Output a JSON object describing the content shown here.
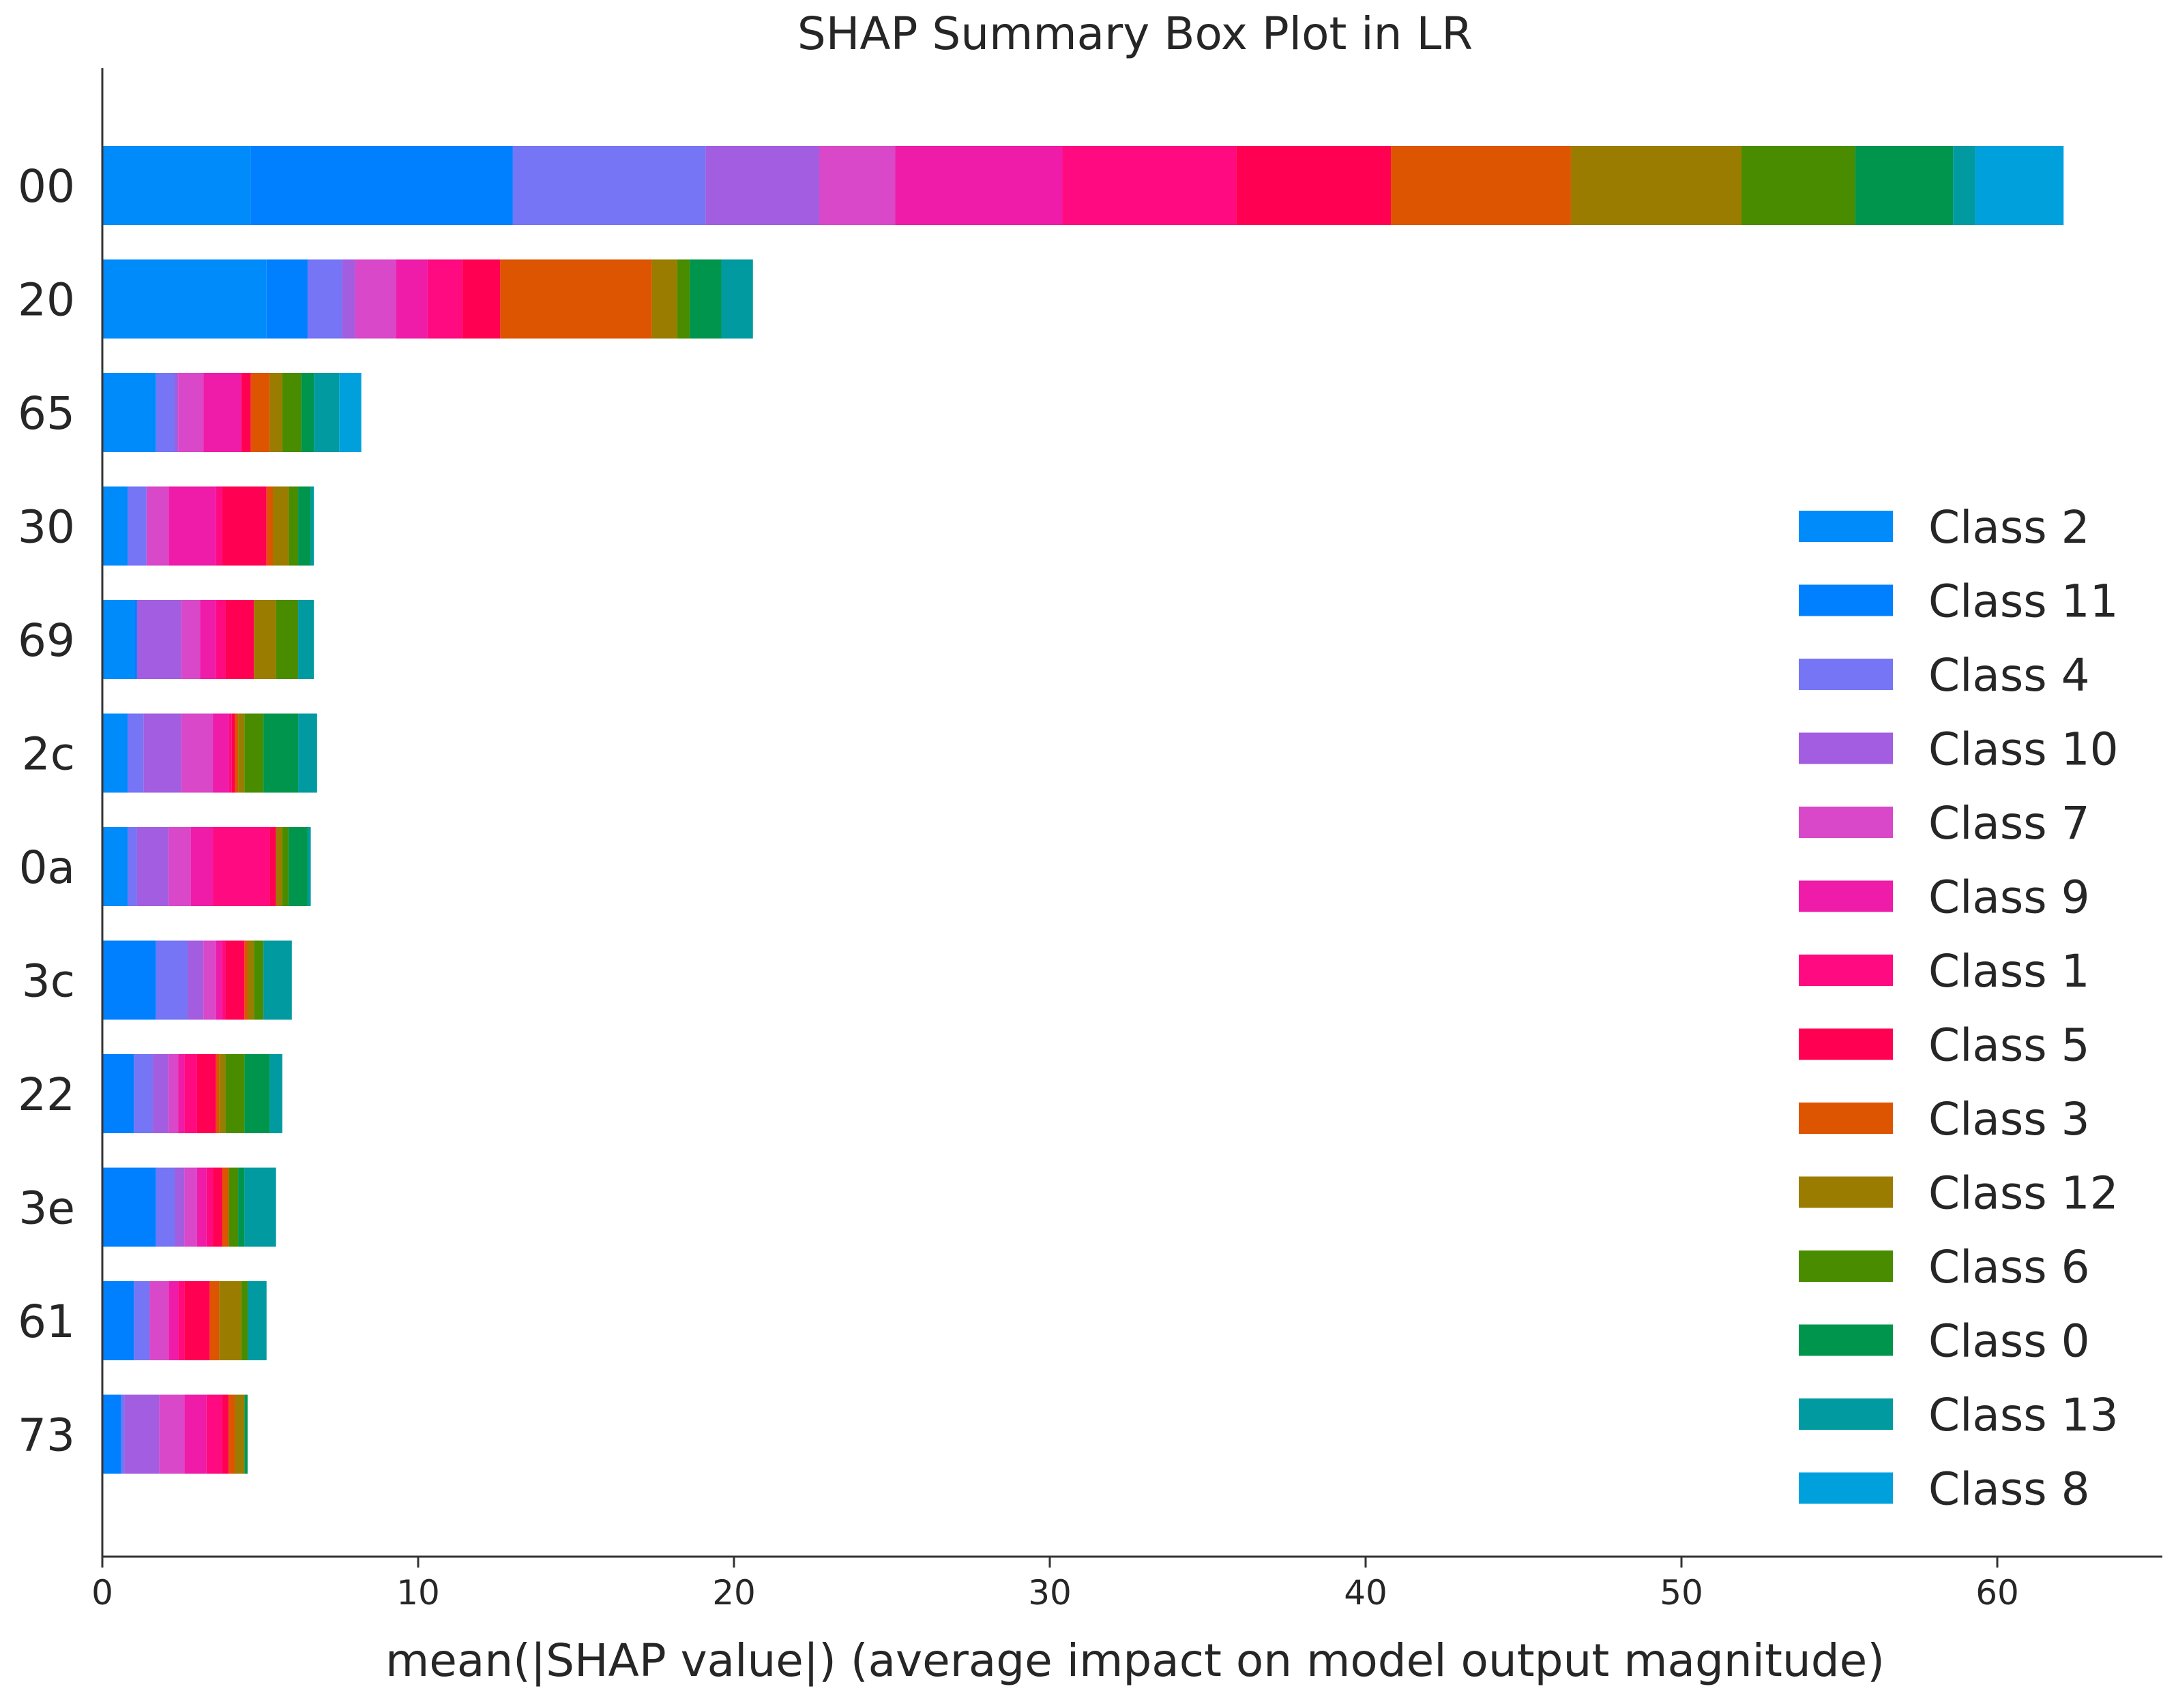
{
  "chart_data": {
    "type": "bar",
    "orientation": "horizontal",
    "stacked": true,
    "title": "SHAP Summary Box Plot in LR",
    "xlabel": "mean(|SHAP value|) (average impact on model output magnitude)",
    "ylabel": "",
    "xlim": [
      0,
      65
    ],
    "xticks": [
      "0",
      "10",
      "20",
      "30",
      "40",
      "50",
      "60"
    ],
    "grid": false,
    "legend_position": "right",
    "categories": [
      "00",
      "20",
      "65",
      "30",
      "69",
      "2c",
      "0a",
      "3c",
      "22",
      "3e",
      "61",
      "73"
    ],
    "series": [
      {
        "name": "Class 2",
        "color": "#008bfb",
        "values": [
          4.7,
          5.2,
          1.7,
          0.8,
          1.0,
          0.8,
          0.8,
          0.0,
          0.0,
          0.0,
          0.0,
          0.0
        ]
      },
      {
        "name": "Class 11",
        "color": "#0080ff",
        "values": [
          8.3,
          1.3,
          0.0,
          0.0,
          0.1,
          0.0,
          0.0,
          1.7,
          1.0,
          1.7,
          1.0,
          0.6
        ]
      },
      {
        "name": "Class 4",
        "color": "#7575f5",
        "values": [
          6.1,
          1.1,
          0.6,
          0.6,
          0.0,
          0.5,
          0.3,
          1.0,
          0.6,
          0.6,
          0.5,
          0.1
        ]
      },
      {
        "name": "Class 10",
        "color": "#a35de0",
        "values": [
          3.6,
          0.4,
          0.1,
          0.0,
          1.4,
          1.2,
          1.0,
          0.5,
          0.5,
          0.3,
          0.0,
          1.1
        ]
      },
      {
        "name": "Class 7",
        "color": "#d848c8",
        "values": [
          2.4,
          1.3,
          0.8,
          0.7,
          0.6,
          1.0,
          0.7,
          0.4,
          0.3,
          0.4,
          0.6,
          0.8
        ]
      },
      {
        "name": "Class 9",
        "color": "#ee1ca8",
        "values": [
          5.3,
          1.0,
          1.2,
          1.5,
          0.5,
          0.5,
          0.7,
          0.2,
          0.2,
          0.3,
          0.3,
          0.7
        ]
      },
      {
        "name": "Class 1",
        "color": "#ff0a80",
        "values": [
          5.5,
          1.1,
          0.0,
          0.2,
          0.3,
          0.1,
          1.8,
          0.1,
          0.4,
          0.2,
          0.2,
          0.5
        ]
      },
      {
        "name": "Class 5",
        "color": "#ff0052",
        "values": [
          4.9,
          1.2,
          0.3,
          1.4,
          0.9,
          0.1,
          0.2,
          0.6,
          0.6,
          0.3,
          0.8,
          0.2
        ]
      },
      {
        "name": "Class 3",
        "color": "#dd5500",
        "values": [
          5.7,
          4.8,
          0.6,
          0.2,
          0.0,
          0.1,
          0.0,
          0.1,
          0.1,
          0.2,
          0.3,
          0.2
        ]
      },
      {
        "name": "Class 12",
        "color": "#9a7c00",
        "values": [
          5.4,
          0.8,
          0.4,
          0.5,
          0.7,
          0.2,
          0.2,
          0.2,
          0.2,
          0.0,
          0.7,
          0.3
        ]
      },
      {
        "name": "Class 6",
        "color": "#4a8c00",
        "values": [
          3.6,
          0.4,
          0.6,
          0.3,
          0.7,
          0.6,
          0.2,
          0.3,
          0.6,
          0.3,
          0.2,
          0.0
        ]
      },
      {
        "name": "Class 0",
        "color": "#00954d",
        "values": [
          3.1,
          1.0,
          0.4,
          0.4,
          0.0,
          1.1,
          0.6,
          0.0,
          0.8,
          0.2,
          0.0,
          0.1
        ]
      },
      {
        "name": "Class 13",
        "color": "#009aa0",
        "values": [
          0.7,
          1.0,
          0.8,
          0.1,
          0.5,
          0.6,
          0.1,
          0.9,
          0.4,
          1.0,
          0.6,
          0.0
        ]
      },
      {
        "name": "Class 8",
        "color": "#00a0dd",
        "values": [
          2.8,
          0.0,
          0.7,
          0.0,
          0.0,
          0.0,
          0.0,
          0.0,
          0.0,
          0.0,
          0.0,
          0.0
        ]
      }
    ]
  }
}
